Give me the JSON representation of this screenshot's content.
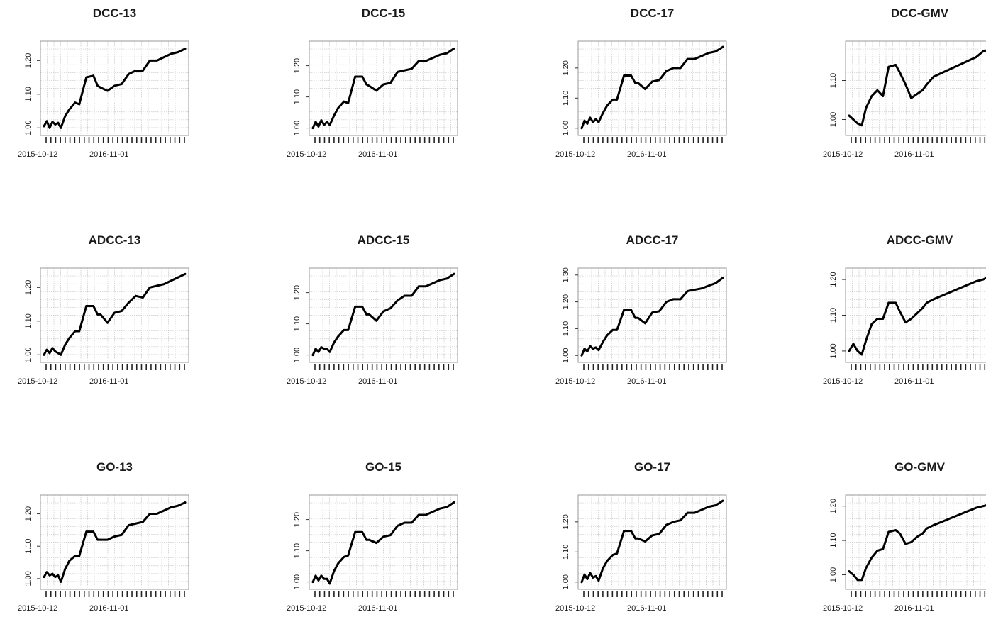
{
  "chart_data": [
    {
      "type": "line",
      "title": "DCC-13",
      "x_ticklabels": [
        "2015-10-12",
        "2016-11-01"
      ],
      "y_ticklabels": [
        "1.00",
        "1.10",
        "1.20"
      ],
      "ylim": [
        0.99,
        1.245
      ],
      "grid": true,
      "series": [
        {
          "x_frac": [
            0,
            0.02,
            0.04,
            0.06,
            0.08,
            0.1,
            0.12,
            0.15,
            0.18,
            0.22,
            0.25,
            0.3,
            0.35,
            0.38,
            0.4,
            0.45,
            0.5,
            0.55,
            0.6,
            0.65,
            0.7,
            0.75,
            0.8,
            0.85,
            0.9,
            0.95,
            1.0
          ],
          "values": [
            1.005,
            1.02,
            1.0,
            1.018,
            1.01,
            1.015,
            1.0,
            1.035,
            1.055,
            1.075,
            1.07,
            1.15,
            1.155,
            1.125,
            1.12,
            1.11,
            1.125,
            1.13,
            1.16,
            1.17,
            1.17,
            1.2,
            1.2,
            1.21,
            1.22,
            1.225,
            1.235
          ]
        }
      ]
    },
    {
      "type": "line",
      "title": "DCC-15",
      "x_ticklabels": [
        "2015-10-12",
        "2016-11-01"
      ],
      "y_ticklabels": [
        "1.00",
        "1.10",
        "1.20"
      ],
      "ylim": [
        0.99,
        1.265
      ],
      "grid": true,
      "series": [
        {
          "x_frac": [
            0,
            0.02,
            0.04,
            0.06,
            0.08,
            0.1,
            0.12,
            0.15,
            0.18,
            0.22,
            0.25,
            0.3,
            0.35,
            0.38,
            0.4,
            0.45,
            0.5,
            0.55,
            0.6,
            0.65,
            0.7,
            0.75,
            0.8,
            0.85,
            0.9,
            0.95,
            1.0
          ],
          "values": [
            1.0,
            1.02,
            1.005,
            1.025,
            1.01,
            1.02,
            1.01,
            1.04,
            1.065,
            1.085,
            1.08,
            1.165,
            1.165,
            1.14,
            1.135,
            1.12,
            1.14,
            1.145,
            1.18,
            1.185,
            1.19,
            1.215,
            1.215,
            1.225,
            1.235,
            1.24,
            1.255
          ]
        }
      ]
    },
    {
      "type": "line",
      "title": "DCC-17",
      "x_ticklabels": [
        "2015-10-12",
        "2016-11-01"
      ],
      "y_ticklabels": [
        "1.00",
        "1.10",
        "1.20"
      ],
      "ylim": [
        0.99,
        1.275
      ],
      "grid": true,
      "series": [
        {
          "x_frac": [
            0,
            0.02,
            0.04,
            0.06,
            0.08,
            0.1,
            0.12,
            0.15,
            0.18,
            0.22,
            0.25,
            0.3,
            0.35,
            0.38,
            0.4,
            0.45,
            0.5,
            0.55,
            0.6,
            0.65,
            0.7,
            0.75,
            0.8,
            0.85,
            0.9,
            0.95,
            1.0
          ],
          "values": [
            1.0,
            1.025,
            1.015,
            1.035,
            1.02,
            1.03,
            1.02,
            1.05,
            1.075,
            1.095,
            1.095,
            1.175,
            1.175,
            1.15,
            1.15,
            1.13,
            1.155,
            1.16,
            1.19,
            1.2,
            1.2,
            1.23,
            1.23,
            1.24,
            1.25,
            1.255,
            1.27
          ]
        }
      ]
    },
    {
      "type": "line",
      "title": "DCC-GMV",
      "x_ticklabels": [
        "2015-10-12",
        "2016-11-01"
      ],
      "y_ticklabels": [
        "1.00",
        "1.10"
      ],
      "ylim": [
        0.97,
        1.19
      ],
      "grid": true,
      "series": [
        {
          "x_frac": [
            0,
            0.03,
            0.06,
            0.09,
            0.12,
            0.16,
            0.2,
            0.24,
            0.28,
            0.33,
            0.36,
            0.4,
            0.44,
            0.48,
            0.52,
            0.55,
            0.6,
            0.66,
            0.72,
            0.78,
            0.84,
            0.9,
            0.95,
            1.0
          ],
          "values": [
            1.01,
            1.0,
            0.99,
            0.985,
            1.03,
            1.06,
            1.075,
            1.06,
            1.135,
            1.14,
            1.12,
            1.09,
            1.055,
            1.065,
            1.075,
            1.09,
            1.11,
            1.12,
            1.13,
            1.14,
            1.15,
            1.16,
            1.175,
            1.18
          ]
        }
      ]
    },
    {
      "type": "line",
      "title": "ADCC-13",
      "x_ticklabels": [
        "2015-10-12",
        "2016-11-01"
      ],
      "y_ticklabels": [
        "1.00",
        "1.10",
        "1.20"
      ],
      "ylim": [
        0.99,
        1.245
      ],
      "grid": true,
      "series": [
        {
          "x_frac": [
            0,
            0.02,
            0.04,
            0.06,
            0.08,
            0.1,
            0.12,
            0.15,
            0.18,
            0.22,
            0.25,
            0.3,
            0.35,
            0.38,
            0.4,
            0.45,
            0.5,
            0.55,
            0.6,
            0.65,
            0.7,
            0.75,
            0.8,
            0.85,
            0.9,
            0.95,
            1.0
          ],
          "values": [
            1.0,
            1.015,
            1.005,
            1.02,
            1.01,
            1.005,
            1.0,
            1.03,
            1.05,
            1.07,
            1.07,
            1.145,
            1.145,
            1.12,
            1.12,
            1.095,
            1.125,
            1.13,
            1.155,
            1.175,
            1.17,
            1.2,
            1.205,
            1.21,
            1.22,
            1.23,
            1.24
          ]
        }
      ]
    },
    {
      "type": "line",
      "title": "ADCC-15",
      "x_ticklabels": [
        "2015-10-12",
        "2016-11-01"
      ],
      "y_ticklabels": [
        "1.00",
        "1.10",
        "1.20"
      ],
      "ylim": [
        0.99,
        1.265
      ],
      "grid": true,
      "series": [
        {
          "x_frac": [
            0,
            0.02,
            0.04,
            0.06,
            0.08,
            0.1,
            0.12,
            0.15,
            0.18,
            0.22,
            0.25,
            0.3,
            0.35,
            0.38,
            0.4,
            0.45,
            0.5,
            0.55,
            0.6,
            0.65,
            0.7,
            0.75,
            0.8,
            0.85,
            0.9,
            0.95,
            1.0
          ],
          "values": [
            1.0,
            1.02,
            1.01,
            1.025,
            1.02,
            1.02,
            1.01,
            1.04,
            1.06,
            1.08,
            1.08,
            1.155,
            1.155,
            1.13,
            1.13,
            1.11,
            1.14,
            1.15,
            1.175,
            1.19,
            1.19,
            1.22,
            1.22,
            1.23,
            1.24,
            1.245,
            1.26
          ]
        }
      ]
    },
    {
      "type": "line",
      "title": "ADCC-17",
      "x_ticklabels": [
        "2015-10-12",
        "2016-11-01"
      ],
      "y_ticklabels": [
        "1.00",
        "1.10",
        "1.20",
        "1.30"
      ],
      "ylim": [
        0.99,
        1.31
      ],
      "grid": true,
      "series": [
        {
          "x_frac": [
            0,
            0.02,
            0.04,
            0.06,
            0.08,
            0.1,
            0.12,
            0.15,
            0.18,
            0.22,
            0.25,
            0.3,
            0.35,
            0.38,
            0.4,
            0.45,
            0.5,
            0.55,
            0.6,
            0.65,
            0.7,
            0.75,
            0.8,
            0.85,
            0.9,
            0.95,
            1.0
          ],
          "values": [
            1.0,
            1.025,
            1.015,
            1.035,
            1.025,
            1.03,
            1.02,
            1.05,
            1.075,
            1.095,
            1.095,
            1.17,
            1.17,
            1.14,
            1.14,
            1.12,
            1.16,
            1.165,
            1.2,
            1.21,
            1.21,
            1.24,
            1.245,
            1.25,
            1.26,
            1.27,
            1.29
          ]
        }
      ]
    },
    {
      "type": "line",
      "title": "ADCC-GMV",
      "x_ticklabels": [
        "2015-10-12",
        "2016-11-01"
      ],
      "y_ticklabels": [
        "1.00",
        "1.10",
        "1.20"
      ],
      "ylim": [
        0.98,
        1.22
      ],
      "grid": true,
      "series": [
        {
          "x_frac": [
            0,
            0.03,
            0.06,
            0.09,
            0.12,
            0.16,
            0.2,
            0.24,
            0.28,
            0.33,
            0.36,
            0.4,
            0.44,
            0.48,
            0.52,
            0.55,
            0.6,
            0.66,
            0.72,
            0.78,
            0.84,
            0.9,
            0.95,
            1.0
          ],
          "values": [
            1.0,
            1.02,
            1.0,
            0.99,
            1.03,
            1.075,
            1.09,
            1.09,
            1.135,
            1.135,
            1.11,
            1.08,
            1.09,
            1.105,
            1.12,
            1.135,
            1.145,
            1.155,
            1.165,
            1.175,
            1.185,
            1.195,
            1.2,
            1.21
          ]
        }
      ]
    },
    {
      "type": "line",
      "title": "GO-13",
      "x_ticklabels": [
        "2015-10-12",
        "2016-11-01"
      ],
      "y_ticklabels": [
        "1.00",
        "1.10",
        "1.20"
      ],
      "ylim": [
        0.98,
        1.245
      ],
      "grid": true,
      "series": [
        {
          "x_frac": [
            0,
            0.02,
            0.04,
            0.06,
            0.08,
            0.1,
            0.12,
            0.15,
            0.18,
            0.22,
            0.25,
            0.3,
            0.35,
            0.38,
            0.4,
            0.45,
            0.5,
            0.55,
            0.6,
            0.65,
            0.7,
            0.75,
            0.8,
            0.85,
            0.9,
            0.95,
            1.0
          ],
          "values": [
            1.005,
            1.02,
            1.01,
            1.015,
            1.005,
            1.01,
            0.99,
            1.03,
            1.055,
            1.07,
            1.07,
            1.145,
            1.145,
            1.12,
            1.12,
            1.12,
            1.13,
            1.135,
            1.165,
            1.17,
            1.175,
            1.2,
            1.2,
            1.21,
            1.22,
            1.225,
            1.235
          ]
        }
      ]
    },
    {
      "type": "line",
      "title": "GO-15",
      "x_ticklabels": [
        "2015-10-12",
        "2016-11-01"
      ],
      "y_ticklabels": [
        "1.00",
        "1.10",
        "1.20"
      ],
      "ylim": [
        0.99,
        1.265
      ],
      "grid": true,
      "series": [
        {
          "x_frac": [
            0,
            0.02,
            0.04,
            0.06,
            0.08,
            0.1,
            0.12,
            0.15,
            0.18,
            0.22,
            0.25,
            0.3,
            0.35,
            0.38,
            0.4,
            0.45,
            0.5,
            0.55,
            0.6,
            0.65,
            0.7,
            0.75,
            0.8,
            0.85,
            0.9,
            0.95,
            1.0
          ],
          "values": [
            1.0,
            1.02,
            1.005,
            1.02,
            1.01,
            1.01,
            0.995,
            1.035,
            1.06,
            1.08,
            1.085,
            1.16,
            1.16,
            1.135,
            1.135,
            1.125,
            1.145,
            1.15,
            1.18,
            1.19,
            1.19,
            1.215,
            1.215,
            1.225,
            1.235,
            1.24,
            1.255
          ]
        }
      ]
    },
    {
      "type": "line",
      "title": "GO-17",
      "x_ticklabels": [
        "2015-10-12",
        "2016-11-01"
      ],
      "y_ticklabels": [
        "1.00",
        "1.10",
        "1.20"
      ],
      "ylim": [
        0.99,
        1.275
      ],
      "grid": true,
      "series": [
        {
          "x_frac": [
            0,
            0.02,
            0.04,
            0.06,
            0.08,
            0.1,
            0.12,
            0.15,
            0.18,
            0.22,
            0.25,
            0.3,
            0.35,
            0.38,
            0.4,
            0.45,
            0.5,
            0.55,
            0.6,
            0.65,
            0.7,
            0.75,
            0.8,
            0.85,
            0.9,
            0.95,
            1.0
          ],
          "values": [
            1.0,
            1.025,
            1.01,
            1.03,
            1.015,
            1.02,
            1.005,
            1.045,
            1.07,
            1.09,
            1.095,
            1.17,
            1.17,
            1.145,
            1.145,
            1.135,
            1.155,
            1.16,
            1.19,
            1.2,
            1.205,
            1.23,
            1.23,
            1.24,
            1.25,
            1.255,
            1.27
          ]
        }
      ]
    },
    {
      "type": "line",
      "title": "GO-GMV",
      "x_ticklabels": [
        "2015-10-12",
        "2016-11-01"
      ],
      "y_ticklabels": [
        "1.00",
        "1.10",
        "1.20"
      ],
      "ylim": [
        0.97,
        1.22
      ],
      "grid": true,
      "series": [
        {
          "x_frac": [
            0,
            0.03,
            0.06,
            0.09,
            0.12,
            0.16,
            0.2,
            0.24,
            0.28,
            0.33,
            0.36,
            0.4,
            0.44,
            0.48,
            0.52,
            0.55,
            0.6,
            0.66,
            0.72,
            0.78,
            0.84,
            0.9,
            0.95,
            1.0
          ],
          "values": [
            1.01,
            1.0,
            0.985,
            0.985,
            1.02,
            1.05,
            1.07,
            1.075,
            1.125,
            1.13,
            1.12,
            1.09,
            1.095,
            1.11,
            1.12,
            1.135,
            1.145,
            1.155,
            1.165,
            1.175,
            1.185,
            1.195,
            1.2,
            1.205
          ]
        }
      ]
    }
  ]
}
